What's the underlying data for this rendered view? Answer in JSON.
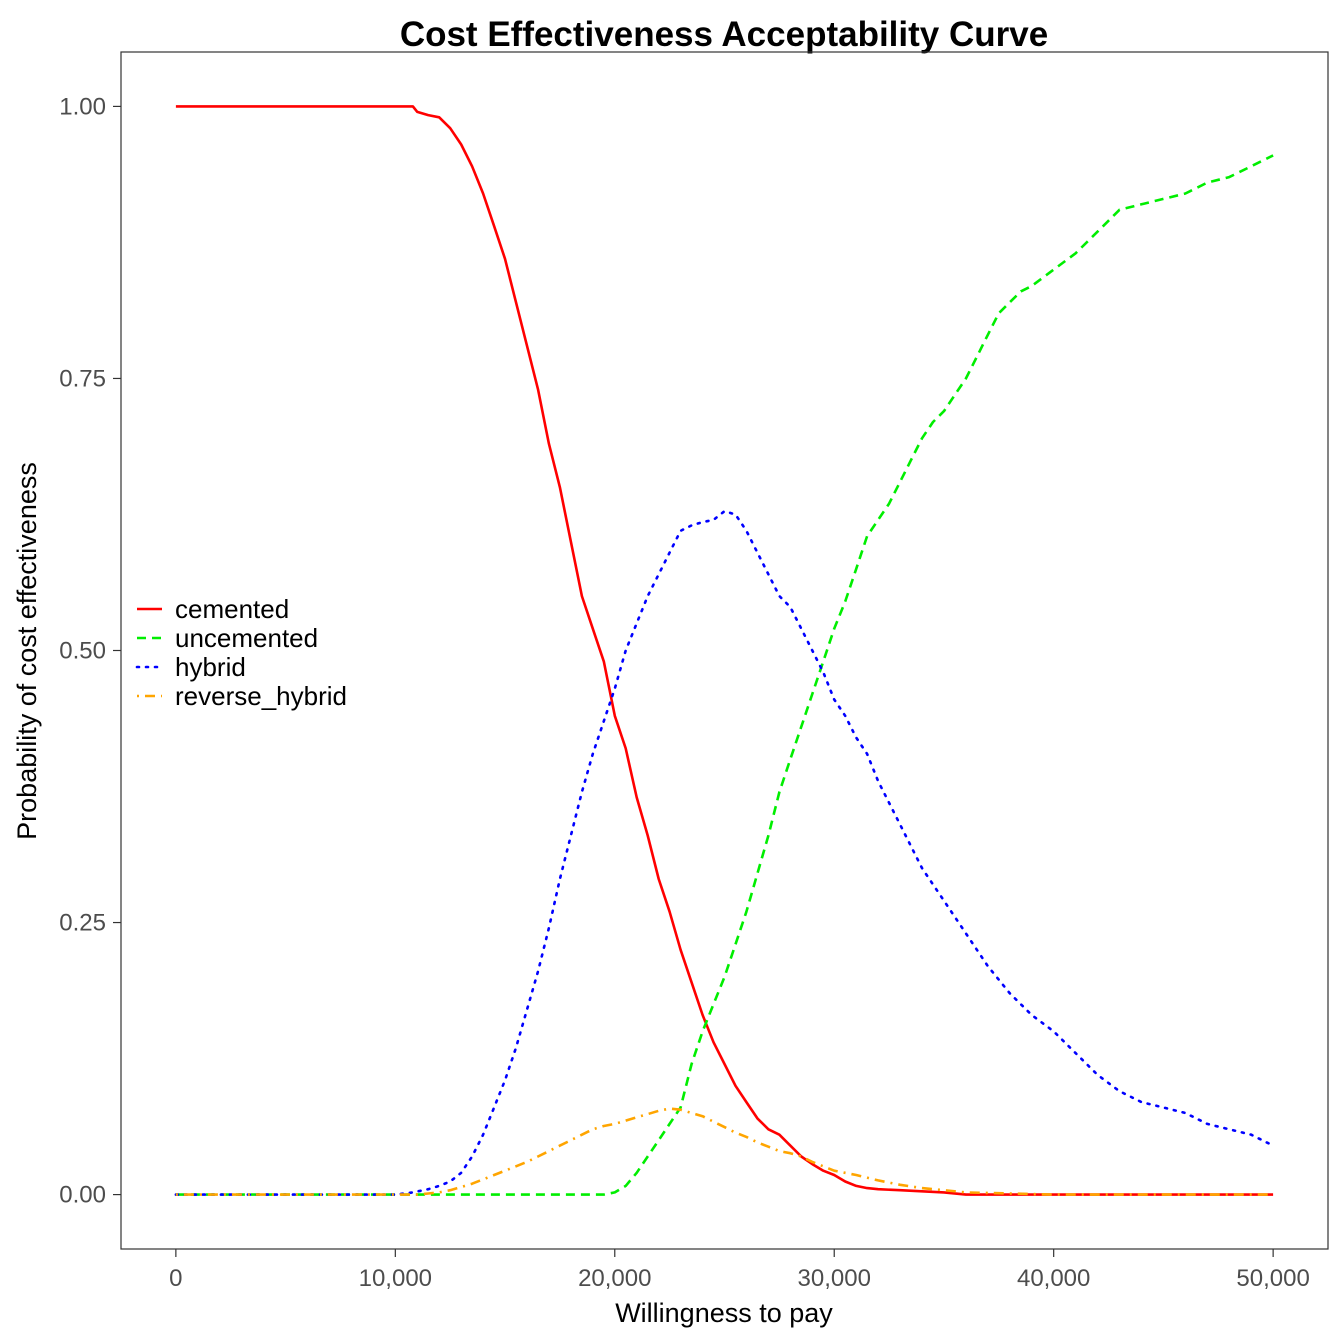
{
  "chart_data": {
    "type": "line",
    "title": "Cost Effectiveness Acceptability Curve",
    "xlabel": "Willingness to pay",
    "ylabel": "Probability of cost effectiveness",
    "xlim": [
      -2500,
      52500
    ],
    "ylim": [
      -0.05,
      1.05
    ],
    "x_ticks": [
      0,
      10000,
      20000,
      30000,
      40000,
      50000
    ],
    "x_tick_labels": [
      "0",
      "10,000",
      "20,000",
      "30,000",
      "40,000",
      "50,000"
    ],
    "y_ticks": [
      0,
      0.25,
      0.5,
      0.75,
      1.0
    ],
    "y_tick_labels": [
      "0.00",
      "0.25",
      "0.50",
      "0.75",
      "1.00"
    ],
    "grid": false,
    "legend_position": "left-middle",
    "series": [
      {
        "name": "cemented",
        "color": "#ff0000",
        "line_style": "solid",
        "x": [
          0,
          10000,
          10800,
          11000,
          11500,
          12000,
          12500,
          13000,
          13500,
          14000,
          14500,
          15000,
          15500,
          16000,
          16500,
          17000,
          17500,
          18000,
          18500,
          19000,
          19500,
          20000,
          20500,
          21000,
          21500,
          22000,
          22500,
          23000,
          23500,
          24000,
          24500,
          25000,
          25500,
          26000,
          26500,
          27000,
          27500,
          28000,
          28500,
          29000,
          29500,
          30000,
          30500,
          31000,
          31500,
          32000,
          33000,
          34000,
          35000,
          36000,
          40000,
          45000,
          50000
        ],
        "y": [
          1.0,
          1.0,
          1.0,
          0.995,
          0.992,
          0.99,
          0.98,
          0.965,
          0.945,
          0.92,
          0.89,
          0.86,
          0.82,
          0.78,
          0.74,
          0.69,
          0.65,
          0.6,
          0.55,
          0.52,
          0.49,
          0.44,
          0.41,
          0.365,
          0.33,
          0.29,
          0.26,
          0.225,
          0.195,
          0.165,
          0.14,
          0.12,
          0.1,
          0.085,
          0.07,
          0.06,
          0.055,
          0.045,
          0.035,
          0.028,
          0.022,
          0.018,
          0.012,
          0.008,
          0.006,
          0.005,
          0.004,
          0.003,
          0.002,
          0.0,
          0.0,
          0.0,
          0.0
        ]
      },
      {
        "name": "uncemented",
        "color": "#00ee00",
        "line_style": "dashed",
        "x": [
          0,
          10000,
          15000,
          19500,
          20000,
          20500,
          21000,
          21500,
          22000,
          22500,
          23000,
          23500,
          24000,
          24500,
          25000,
          25500,
          26000,
          26500,
          27000,
          27500,
          28000,
          28500,
          29000,
          29500,
          30000,
          30500,
          31000,
          31500,
          32000,
          32500,
          33000,
          33500,
          34000,
          34500,
          35000,
          35500,
          36000,
          36500,
          37000,
          37500,
          38000,
          38500,
          39000,
          40000,
          41000,
          42000,
          43000,
          44000,
          45000,
          46000,
          47000,
          48000,
          49000,
          50000
        ],
        "y": [
          0.0,
          0.0,
          0.0,
          0.0,
          0.002,
          0.008,
          0.02,
          0.035,
          0.05,
          0.065,
          0.08,
          0.12,
          0.15,
          0.175,
          0.2,
          0.23,
          0.26,
          0.295,
          0.33,
          0.37,
          0.4,
          0.43,
          0.46,
          0.49,
          0.52,
          0.545,
          0.575,
          0.605,
          0.62,
          0.635,
          0.655,
          0.675,
          0.695,
          0.71,
          0.72,
          0.735,
          0.75,
          0.77,
          0.79,
          0.81,
          0.82,
          0.83,
          0.835,
          0.85,
          0.865,
          0.885,
          0.905,
          0.91,
          0.915,
          0.92,
          0.93,
          0.935,
          0.945,
          0.955
        ]
      },
      {
        "name": "hybrid",
        "color": "#0000ff",
        "line_style": "dotted",
        "x": [
          0,
          10000,
          10800,
          11500,
          12000,
          12500,
          13000,
          13500,
          14000,
          14500,
          15000,
          15500,
          16000,
          16500,
          17000,
          17500,
          18000,
          18500,
          19000,
          19500,
          20000,
          20500,
          21000,
          21500,
          22000,
          22500,
          23000,
          23500,
          24000,
          24500,
          25000,
          25500,
          26000,
          26500,
          27000,
          27500,
          28000,
          28500,
          29000,
          29500,
          30000,
          30500,
          31000,
          31500,
          32000,
          33000,
          34000,
          35000,
          36000,
          37000,
          38000,
          39000,
          40000,
          41000,
          42000,
          43000,
          44000,
          45000,
          46000,
          47000,
          48000,
          49000,
          50000
        ],
        "y": [
          0.0,
          0.0,
          0.002,
          0.005,
          0.008,
          0.012,
          0.02,
          0.035,
          0.055,
          0.08,
          0.105,
          0.135,
          0.17,
          0.205,
          0.245,
          0.29,
          0.33,
          0.37,
          0.405,
          0.435,
          0.465,
          0.5,
          0.525,
          0.55,
          0.57,
          0.59,
          0.61,
          0.615,
          0.618,
          0.62,
          0.628,
          0.625,
          0.61,
          0.59,
          0.57,
          0.55,
          0.54,
          0.52,
          0.5,
          0.48,
          0.455,
          0.44,
          0.42,
          0.405,
          0.38,
          0.34,
          0.3,
          0.27,
          0.24,
          0.21,
          0.185,
          0.165,
          0.15,
          0.13,
          0.11,
          0.095,
          0.085,
          0.08,
          0.075,
          0.065,
          0.06,
          0.055,
          0.045
        ]
      },
      {
        "name": "reverse_hybrid",
        "color": "#ffa500",
        "line_style": "dotdash",
        "x": [
          0,
          10000,
          11000,
          11500,
          12000,
          12500,
          13000,
          13500,
          14000,
          14500,
          15000,
          15500,
          16000,
          16500,
          17000,
          17500,
          18000,
          18500,
          19000,
          19500,
          20000,
          20500,
          21000,
          21500,
          22000,
          22500,
          23000,
          23500,
          24000,
          24500,
          25000,
          25500,
          26000,
          26500,
          27000,
          27500,
          28000,
          28500,
          29000,
          29500,
          30000,
          31000,
          32000,
          33000,
          34000,
          35000,
          36000,
          38000,
          40000,
          45000,
          50000
        ],
        "y": [
          0.0,
          0.0,
          0.0,
          0.001,
          0.002,
          0.004,
          0.007,
          0.01,
          0.014,
          0.018,
          0.022,
          0.026,
          0.03,
          0.035,
          0.04,
          0.045,
          0.05,
          0.055,
          0.06,
          0.063,
          0.065,
          0.068,
          0.071,
          0.074,
          0.077,
          0.079,
          0.078,
          0.075,
          0.072,
          0.067,
          0.062,
          0.057,
          0.053,
          0.048,
          0.044,
          0.04,
          0.038,
          0.035,
          0.03,
          0.026,
          0.022,
          0.018,
          0.013,
          0.009,
          0.006,
          0.004,
          0.002,
          0.001,
          0.0,
          0.0,
          0.0
        ]
      }
    ]
  }
}
